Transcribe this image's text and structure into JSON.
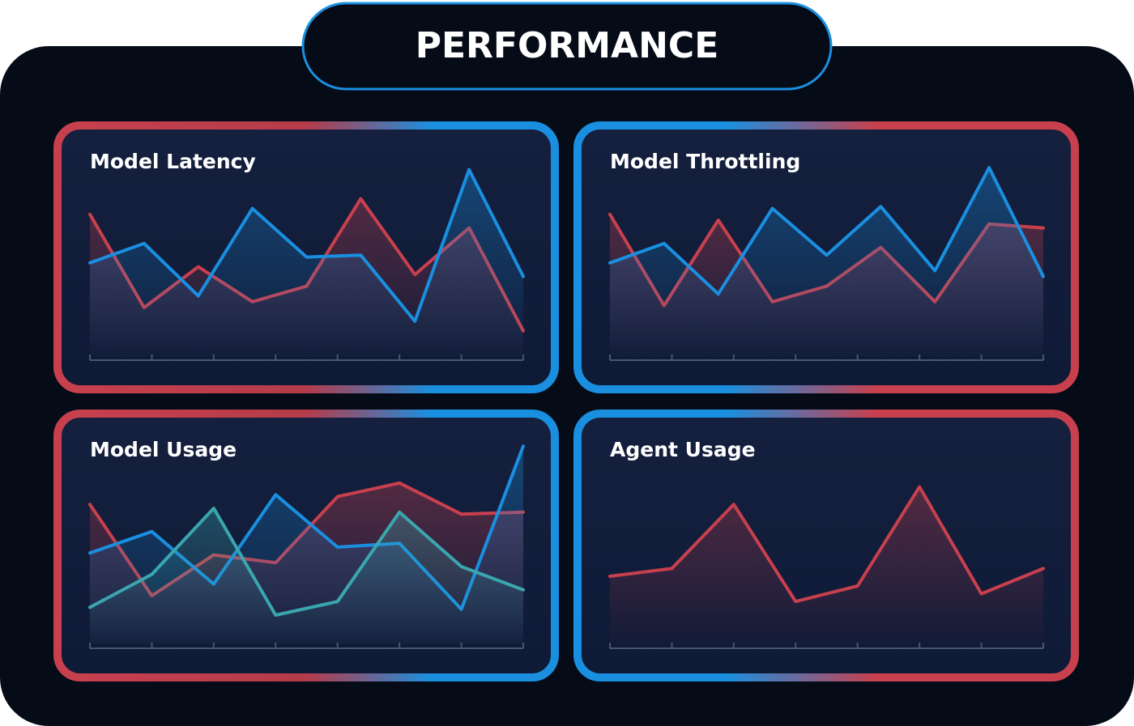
{
  "header": {
    "title": "PERFORMANCE"
  },
  "chart_data": [
    {
      "type": "line",
      "title": "Model Latency",
      "x": [
        0,
        0.875,
        1.75,
        2.625,
        3.5,
        4.375,
        5.25,
        6.125,
        7
      ],
      "xlim": [
        0,
        7
      ],
      "xticks": [
        0,
        1,
        2,
        3,
        4,
        5,
        6,
        7
      ],
      "ylim": [
        0,
        100
      ],
      "series": [
        {
          "name": null,
          "color": "#c8404e",
          "values": [
            73,
            25,
            46,
            28,
            36,
            81,
            42,
            66,
            13
          ]
        },
        {
          "name": null,
          "color": "#1a8fe0",
          "values": [
            48,
            58,
            31,
            76,
            51,
            52,
            18,
            96,
            41
          ]
        }
      ]
    },
    {
      "type": "line",
      "title": "Model Throttling",
      "x": [
        0,
        0.875,
        1.75,
        2.625,
        3.5,
        4.375,
        5.25,
        6.125,
        7
      ],
      "xlim": [
        0,
        7
      ],
      "xticks": [
        0,
        1,
        2,
        3,
        4,
        5,
        6,
        7
      ],
      "ylim": [
        0,
        100
      ],
      "series": [
        {
          "name": null,
          "color": "#c8404e",
          "values": [
            73,
            26,
            70,
            28,
            36,
            56,
            28,
            68,
            66
          ]
        },
        {
          "name": null,
          "color": "#1a8fe0",
          "values": [
            48,
            58,
            32,
            76,
            52,
            77,
            44,
            97,
            41
          ]
        }
      ]
    },
    {
      "type": "line",
      "title": "Model Usage",
      "x": [
        0,
        1,
        2,
        3,
        4,
        5,
        6,
        7
      ],
      "xlim": [
        0,
        7
      ],
      "xticks": [
        0,
        1,
        2,
        3,
        4,
        5,
        6,
        7
      ],
      "ylim": [
        0,
        100
      ],
      "series": [
        {
          "name": null,
          "color": "#c8404e",
          "values": [
            72,
            25,
            46,
            42,
            76,
            83,
            67,
            68
          ]
        },
        {
          "name": null,
          "color": "#1a8fe0",
          "values": [
            47,
            58,
            31,
            77,
            50,
            52,
            18,
            102
          ]
        },
        {
          "name": null,
          "color": "#3aa6b0",
          "values": [
            19,
            36,
            70,
            15,
            22,
            68,
            40,
            28
          ]
        }
      ]
    },
    {
      "type": "line",
      "title": "Agent Usage",
      "x": [
        0,
        1,
        2,
        3,
        4,
        5,
        6,
        7
      ],
      "xlim": [
        0,
        7
      ],
      "xticks": [
        0,
        1,
        2,
        3,
        4,
        5,
        6,
        7
      ],
      "ylim": [
        0,
        100
      ],
      "series": [
        {
          "name": null,
          "color": "#c8404e",
          "values": [
            35,
            39,
            72,
            22,
            30,
            81,
            26,
            39
          ]
        }
      ]
    }
  ]
}
